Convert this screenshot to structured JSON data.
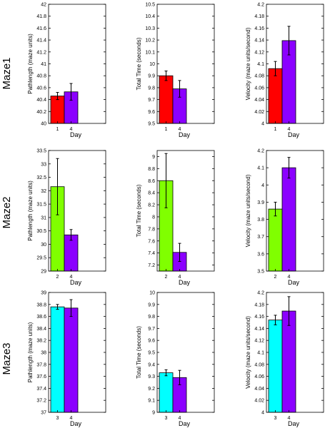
{
  "figure": {
    "row_labels": [
      "Maze1",
      "Maze2",
      "Maze3"
    ],
    "xlabel": "Day"
  },
  "colors": {
    "red": "#ff0000",
    "purple": "#8b00ff",
    "green": "#80ff00",
    "cyan": "#00ffff",
    "bar_outline": "#000000",
    "error_bar": "#000000"
  },
  "chart_data": [
    {
      "type": "bar",
      "row": 0,
      "col": 0,
      "ylabel": "Pathlength (maze units)",
      "xlabel": "Day",
      "ylim": [
        40,
        42
      ],
      "yticks": [
        "40",
        "40.2",
        "40.4",
        "40.6",
        "40.8",
        "41",
        "41.2",
        "41.4",
        "41.6",
        "41.8",
        "42"
      ],
      "categories": [
        "1",
        "4"
      ],
      "values": [
        40.46,
        40.53
      ],
      "errors": [
        0.06,
        0.14
      ],
      "bar_colors": [
        "red",
        "purple"
      ]
    },
    {
      "type": "bar",
      "row": 0,
      "col": 1,
      "ylabel": "Total Time (seconds)",
      "xlabel": "Day",
      "ylim": [
        9.5,
        10.5
      ],
      "yticks": [
        "9.5",
        "9.6",
        "9.7",
        "9.8",
        "9.9",
        "10",
        "10.1",
        "10.2",
        "10.3",
        "10.4",
        "10.5"
      ],
      "categories": [
        "1",
        "4"
      ],
      "values": [
        9.9,
        9.79
      ],
      "errors": [
        0.04,
        0.07
      ],
      "bar_colors": [
        "red",
        "purple"
      ]
    },
    {
      "type": "bar",
      "row": 0,
      "col": 2,
      "ylabel": "Velocity (maze units/second)",
      "xlabel": "Day",
      "ylim": [
        4,
        4.2
      ],
      "yticks": [
        "4",
        "4.02",
        "4.04",
        "4.06",
        "4.08",
        "4.1",
        "4.12",
        "4.14",
        "4.16",
        "4.18",
        "4.2"
      ],
      "categories": [
        "1",
        "4"
      ],
      "values": [
        4.092,
        4.139
      ],
      "errors": [
        0.012,
        0.024
      ],
      "bar_colors": [
        "red",
        "purple"
      ]
    },
    {
      "type": "bar",
      "row": 1,
      "col": 0,
      "ylabel": "Pathlength (maze units)",
      "xlabel": "Day",
      "ylim": [
        29,
        33.5
      ],
      "yticks": [
        "29",
        "29.5",
        "30",
        "30.5",
        "31",
        "31.5",
        "32",
        "32.5",
        "33",
        "33.5"
      ],
      "categories": [
        "2",
        "4"
      ],
      "values": [
        32.15,
        30.35
      ],
      "errors": [
        1.05,
        0.2
      ],
      "bar_colors": [
        "green",
        "purple"
      ]
    },
    {
      "type": "bar",
      "row": 1,
      "col": 1,
      "ylabel": "Total Time (seconds)",
      "xlabel": "Day",
      "ylim": [
        7.1,
        9.1
      ],
      "yticks": [
        "7.2",
        "7.4",
        "7.6",
        "7.8",
        "8",
        "8.2",
        "8.4",
        "8.6",
        "8.8",
        "9"
      ],
      "categories": [
        "2",
        "4"
      ],
      "values": [
        8.6,
        7.41
      ],
      "errors": [
        0.45,
        0.15
      ],
      "bar_colors": [
        "green",
        "purple"
      ]
    },
    {
      "type": "bar",
      "row": 1,
      "col": 2,
      "ylabel": "Velocity (maze units/second)",
      "xlabel": "Day",
      "ylim": [
        3.5,
        4.2
      ],
      "yticks": [
        "3.5",
        "3.6",
        "3.7",
        "3.8",
        "3.9",
        "4",
        "4.1",
        "4.2"
      ],
      "categories": [
        "2",
        "4"
      ],
      "values": [
        3.86,
        4.1
      ],
      "errors": [
        0.04,
        0.06
      ],
      "bar_colors": [
        "green",
        "purple"
      ]
    },
    {
      "type": "bar",
      "row": 2,
      "col": 0,
      "ylabel": "Pathlength (maze units)",
      "xlabel": "Day",
      "ylim": [
        37,
        39
      ],
      "yticks": [
        "37",
        "37.2",
        "37.4",
        "37.6",
        "37.8",
        "38",
        "38.2",
        "38.4",
        "38.6",
        "38.8",
        "39"
      ],
      "categories": [
        "3",
        "4"
      ],
      "values": [
        38.76,
        38.74
      ],
      "errors": [
        0.04,
        0.14
      ],
      "bar_colors": [
        "cyan",
        "purple"
      ]
    },
    {
      "type": "bar",
      "row": 2,
      "col": 1,
      "ylabel": "Total Time (seconds)",
      "xlabel": "Day",
      "ylim": [
        9,
        10
      ],
      "yticks": [
        "9",
        "9.1",
        "9.2",
        "9.3",
        "9.4",
        "9.5",
        "9.6",
        "9.7",
        "9.8",
        "9.9",
        "10"
      ],
      "categories": [
        "3",
        "4"
      ],
      "values": [
        9.33,
        9.29
      ],
      "errors": [
        0.025,
        0.06
      ],
      "bar_colors": [
        "cyan",
        "purple"
      ]
    },
    {
      "type": "bar",
      "row": 2,
      "col": 2,
      "ylabel": "Velocity (maze units/second)",
      "xlabel": "Day",
      "ylim": [
        4,
        4.2
      ],
      "yticks": [
        "4",
        "4.02",
        "4.04",
        "4.06",
        "4.08",
        "4.1",
        "4.12",
        "4.14",
        "4.16",
        "4.18",
        "4.2"
      ],
      "categories": [
        "3",
        "4"
      ],
      "values": [
        4.154,
        4.169
      ],
      "errors": [
        0.008,
        0.024
      ],
      "bar_colors": [
        "cyan",
        "purple"
      ]
    }
  ]
}
